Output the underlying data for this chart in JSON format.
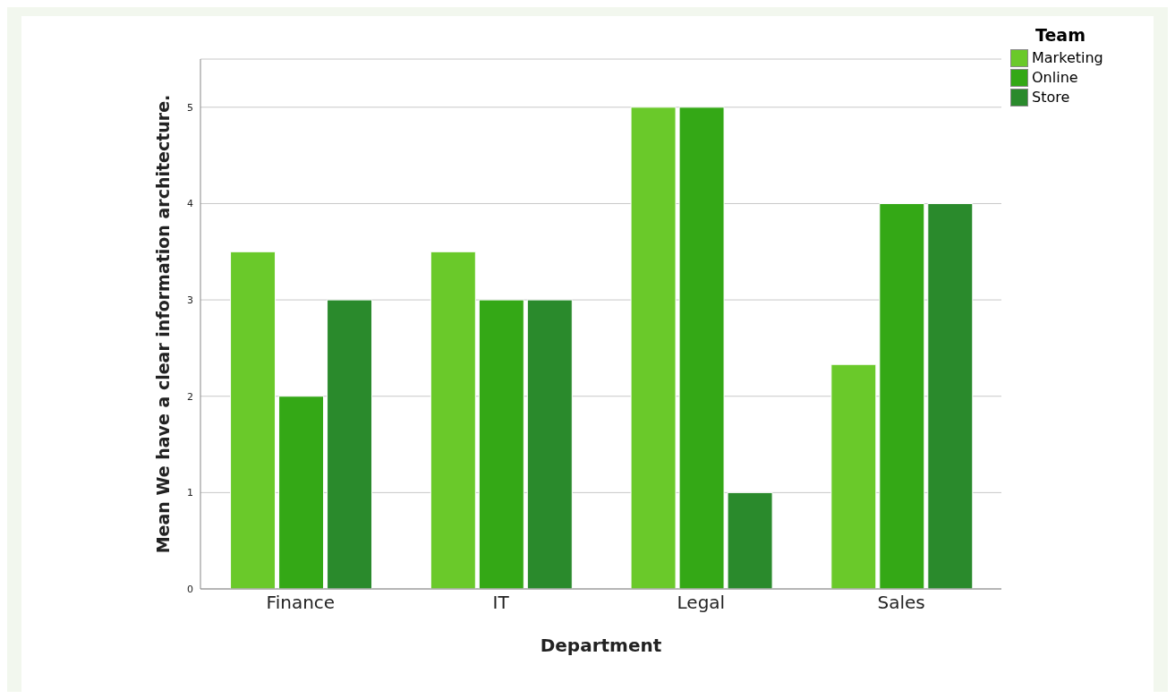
{
  "chart_data": {
    "type": "bar",
    "xlabel": "Department",
    "ylabel": "Mean We have a clear information architecture.",
    "legend_title": "Team",
    "categories": [
      "Finance",
      "IT",
      "Legal",
      "Sales"
    ],
    "series": [
      {
        "name": "Marketing",
        "color": "#6ac92a",
        "values": [
          3.5,
          3.5,
          5,
          2.33
        ]
      },
      {
        "name": "Online",
        "color": "#34a816",
        "values": [
          2,
          3,
          5,
          4
        ]
      },
      {
        "name": "Store",
        "color": "#2a8a2c",
        "values": [
          3,
          3,
          1,
          4
        ]
      }
    ],
    "ylim": [
      0,
      5.5
    ],
    "yticks": [
      0,
      1,
      2,
      3,
      4,
      5
    ],
    "grid": "y",
    "legend": "top right"
  }
}
